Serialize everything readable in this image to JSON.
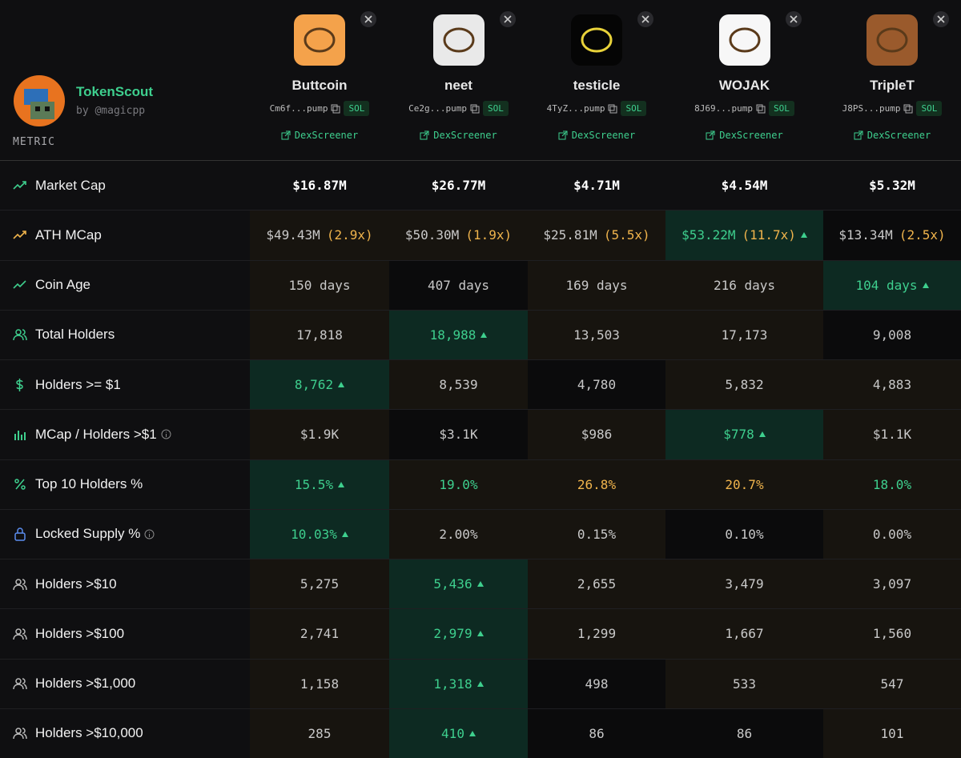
{
  "header": {
    "brand": "TokenScout",
    "byline": "by @magicpp",
    "metric_label": "METRIC"
  },
  "coins": [
    {
      "name": "Buttcoin",
      "address": "Cm6f...pump",
      "chain": "SOL",
      "link": "DexScreener",
      "logo_color": "#f4a24b"
    },
    {
      "name": "neet",
      "address": "Ce2g...pump",
      "chain": "SOL",
      "link": "DexScreener",
      "logo_color": "#e9e9e9"
    },
    {
      "name": "testicle",
      "address": "4TyZ...pump",
      "chain": "SOL",
      "link": "DexScreener",
      "logo_color": "#050505"
    },
    {
      "name": "WOJAK",
      "address": "8J69...pump",
      "chain": "SOL",
      "link": "DexScreener",
      "logo_color": "#f7f7f7"
    },
    {
      "name": "TripleT",
      "address": "J8PS...pump",
      "chain": "SOL",
      "link": "DexScreener",
      "logo_color": "#9a5a2c"
    }
  ],
  "rows": [
    {
      "label": "Market Cap",
      "cells": [
        {
          "text": "$16.87M",
          "bg": "#0f0f11",
          "color": "#ffffff"
        },
        {
          "text": "$26.77M",
          "bg": "#0f0f11",
          "color": "#ffffff"
        },
        {
          "text": "$4.71M",
          "bg": "#0f0f11",
          "color": "#ffffff"
        },
        {
          "text": "$4.54M",
          "bg": "#0f0f11",
          "color": "#ffffff"
        },
        {
          "text": "$5.32M",
          "bg": "#0f0f11",
          "color": "#ffffff"
        }
      ]
    },
    {
      "label": "ATH MCap",
      "cells": [
        {
          "text": "$49.43M",
          "multiple": "(2.9x)",
          "bg": "#17140f"
        },
        {
          "text": "$50.30M",
          "multiple": "(1.9x)",
          "bg": "#17140f"
        },
        {
          "text": "$25.81M",
          "multiple": "(5.5x)",
          "bg": "#17140f"
        },
        {
          "text": "$53.22M",
          "multiple": "(11.7x)",
          "bg": "#0d2a22",
          "color": "#3ecf8e",
          "up": true
        },
        {
          "text": "$13.34M",
          "multiple": "(2.5x)",
          "bg": "#0b0b0c"
        }
      ]
    },
    {
      "label": "Coin Age",
      "cells": [
        {
          "text": "150 days",
          "bg": "#17140f"
        },
        {
          "text": "407 days",
          "bg": "#0b0b0c"
        },
        {
          "text": "169 days",
          "bg": "#17140f"
        },
        {
          "text": "216 days",
          "bg": "#17140f"
        },
        {
          "text": "104 days",
          "bg": "#0d2a22",
          "color": "#3ecf8e",
          "up": true
        }
      ]
    },
    {
      "label": "Total Holders",
      "cells": [
        {
          "text": "17,818",
          "bg": "#17140f"
        },
        {
          "text": "18,988",
          "bg": "#0d2a22",
          "color": "#3ecf8e",
          "up": true
        },
        {
          "text": "13,503",
          "bg": "#17140f"
        },
        {
          "text": "17,173",
          "bg": "#17140f"
        },
        {
          "text": "9,008",
          "bg": "#0b0b0c"
        }
      ]
    },
    {
      "label": "Holders >= $1",
      "cells": [
        {
          "text": "8,762",
          "bg": "#0d2a22",
          "color": "#3ecf8e",
          "up": true
        },
        {
          "text": "8,539",
          "bg": "#17140f"
        },
        {
          "text": "4,780",
          "bg": "#0b0b0c"
        },
        {
          "text": "5,832",
          "bg": "#17140f"
        },
        {
          "text": "4,883",
          "bg": "#17140f"
        }
      ]
    },
    {
      "label": "MCap / Holders >$1",
      "info": true,
      "cells": [
        {
          "text": "$1.9K",
          "bg": "#17140f"
        },
        {
          "text": "$3.1K",
          "bg": "#0b0b0c"
        },
        {
          "text": "$986",
          "bg": "#17140f"
        },
        {
          "text": "$778",
          "bg": "#0d2a22",
          "color": "#3ecf8e",
          "up": true
        },
        {
          "text": "$1.1K",
          "bg": "#17140f"
        }
      ]
    },
    {
      "label": "Top 10 Holders %",
      "cells": [
        {
          "text": "15.5%",
          "bg": "#0d2a22",
          "color": "#3ecf8e",
          "up": true
        },
        {
          "text": "19.0%",
          "bg": "#17140f",
          "color": "#3ecf8e"
        },
        {
          "text": "26.8%",
          "bg": "#17140f",
          "color": "#f0b44c"
        },
        {
          "text": "20.7%",
          "bg": "#17140f",
          "color": "#f0b44c"
        },
        {
          "text": "18.0%",
          "bg": "#17140f",
          "color": "#3ecf8e"
        }
      ]
    },
    {
      "label": "Locked Supply %",
      "info": true,
      "cells": [
        {
          "text": "10.03%",
          "bg": "#0d2a22",
          "color": "#3ecf8e",
          "up": true
        },
        {
          "text": "2.00%",
          "bg": "#17140f"
        },
        {
          "text": "0.15%",
          "bg": "#17140f"
        },
        {
          "text": "0.10%",
          "bg": "#0b0b0c"
        },
        {
          "text": "0.00%",
          "bg": "#17140f"
        }
      ]
    },
    {
      "label": "Holders >$10",
      "cells": [
        {
          "text": "5,275",
          "bg": "#17140f"
        },
        {
          "text": "5,436",
          "bg": "#0d2a22",
          "color": "#3ecf8e",
          "up": true
        },
        {
          "text": "2,655",
          "bg": "#17140f"
        },
        {
          "text": "3,479",
          "bg": "#17140f"
        },
        {
          "text": "3,097",
          "bg": "#17140f"
        }
      ]
    },
    {
      "label": "Holders >$100",
      "cells": [
        {
          "text": "2,741",
          "bg": "#17140f"
        },
        {
          "text": "2,979",
          "bg": "#0d2a22",
          "color": "#3ecf8e",
          "up": true
        },
        {
          "text": "1,299",
          "bg": "#17140f"
        },
        {
          "text": "1,667",
          "bg": "#17140f"
        },
        {
          "text": "1,560",
          "bg": "#17140f"
        }
      ]
    },
    {
      "label": "Holders >$1,000",
      "cells": [
        {
          "text": "1,158",
          "bg": "#17140f"
        },
        {
          "text": "1,318",
          "bg": "#0d2a22",
          "color": "#3ecf8e",
          "up": true
        },
        {
          "text": "498",
          "bg": "#0b0b0c"
        },
        {
          "text": "533",
          "bg": "#17140f"
        },
        {
          "text": "547",
          "bg": "#17140f"
        }
      ]
    },
    {
      "label": "Holders >$10,000",
      "cells": [
        {
          "text": "285",
          "bg": "#17140f"
        },
        {
          "text": "410",
          "bg": "#0d2a22",
          "color": "#3ecf8e",
          "up": true
        },
        {
          "text": "86",
          "bg": "#0b0b0c"
        },
        {
          "text": "86",
          "bg": "#0b0b0c"
        },
        {
          "text": "101",
          "bg": "#17140f"
        }
      ]
    }
  ]
}
